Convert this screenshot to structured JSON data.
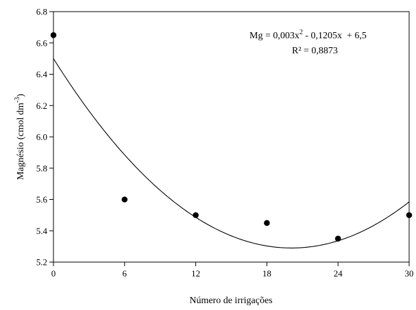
{
  "chart_data": {
    "type": "scatter",
    "xlabel": "Número de irrigações",
    "ylabel": {
      "prefix": "Magnésio (cmol dm",
      "superscript": "-3",
      "suffix": ")"
    },
    "xlim": [
      0,
      30
    ],
    "ylim": [
      5.2,
      6.8
    ],
    "x_ticks": [
      0,
      6,
      12,
      18,
      24,
      30
    ],
    "x_tick_labels": [
      "0",
      "6",
      "12",
      "18",
      "24",
      "30"
    ],
    "y_ticks": [
      5.2,
      5.4,
      5.6,
      5.8,
      6.0,
      6.2,
      6.4,
      6.6,
      6.8
    ],
    "y_tick_labels": [
      "5.2",
      "5.4",
      "5.6",
      "5.8",
      "6.0",
      "6.2",
      "6.4",
      "6.6",
      "6.8"
    ],
    "points": [
      {
        "x": 0,
        "y": 6.65
      },
      {
        "x": 6,
        "y": 5.6
      },
      {
        "x": 12,
        "y": 5.5
      },
      {
        "x": 18,
        "y": 5.45
      },
      {
        "x": 24,
        "y": 5.35
      },
      {
        "x": 30,
        "y": 5.5
      }
    ],
    "fit": {
      "model": "quadratic",
      "coefficients": {
        "a": 0.003,
        "b": -0.1205,
        "c": 6.5
      },
      "equation": {
        "lhs": "Mg = 0,003x",
        "exponent": "2",
        "rhs": " - 0,1205x  + 6,5"
      },
      "r2_label": "R² = 0,8873"
    },
    "grid": false,
    "legend": "none",
    "colors": {
      "marker": "#000000",
      "line": "#000000",
      "axes": "#000000"
    }
  }
}
